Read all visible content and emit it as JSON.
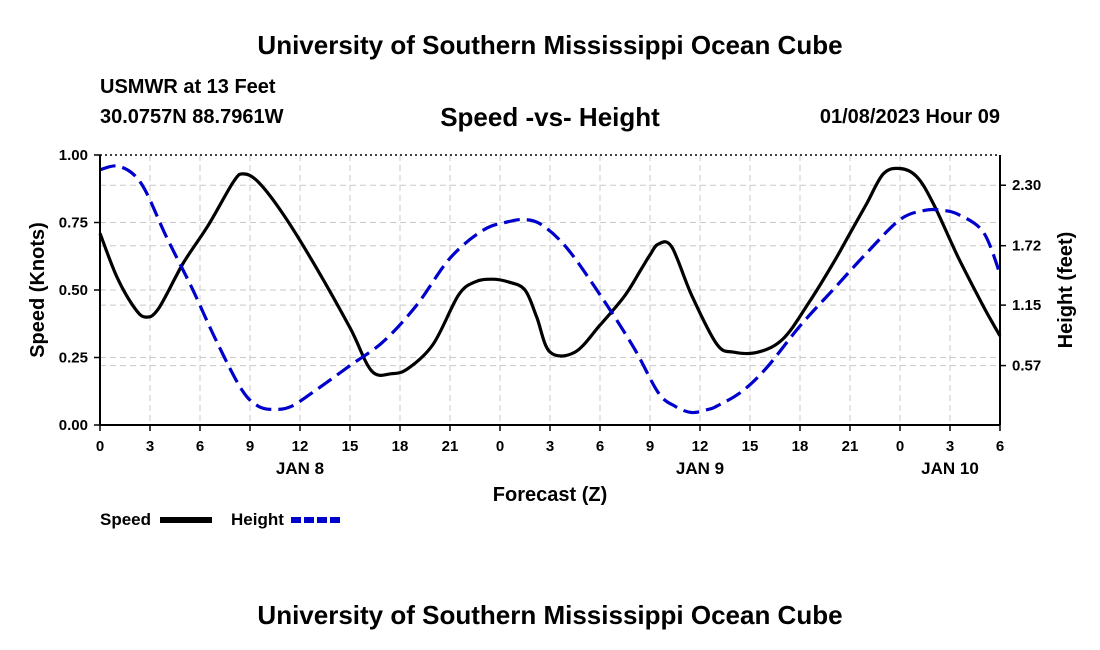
{
  "header": {
    "title_top": "University of Southern Mississippi Ocean Cube",
    "title_bottom": "University of Southern Mississippi Ocean Cube",
    "station": "USMWR at 13 Feet",
    "coords": "30.0757N  88.7961W",
    "chart_title": "Speed -vs- Height",
    "timestamp": "01/08/2023 Hour 09"
  },
  "chart_data": {
    "type": "line",
    "title": "Speed -vs- Height",
    "xlabel": "Forecast (Z)",
    "ylabel": "Speed (Knots)",
    "y2label": "Height (feet)",
    "xlim": [
      0,
      54
    ],
    "ylim": [
      0,
      1
    ],
    "y2lim": [
      0,
      2.59
    ],
    "x_ticks": [
      0,
      3,
      6,
      9,
      12,
      15,
      18,
      21,
      24,
      27,
      30,
      33,
      36,
      39,
      42,
      45,
      48,
      51,
      54
    ],
    "x_tick_labels": [
      "0",
      "3",
      "6",
      "9",
      "12",
      "15",
      "18",
      "21",
      "0",
      "3",
      "6",
      "9",
      "12",
      "15",
      "18",
      "21",
      "0",
      "3",
      "6"
    ],
    "day_labels": [
      {
        "x": 12,
        "label": "JAN 8"
      },
      {
        "x": 36,
        "label": "JAN 9"
      },
      {
        "x": 51,
        "label": "JAN 10"
      }
    ],
    "y_ticks": [
      0,
      0.25,
      0.5,
      0.75,
      1.0
    ],
    "y_tick_labels": [
      "0.00",
      "0.25",
      "0.50",
      "0.75",
      "1.00"
    ],
    "y2_ticks": [
      0.57,
      1.15,
      1.72,
      2.3
    ],
    "y2_tick_labels": [
      "0.57",
      "1.15",
      "1.72",
      "2.30"
    ],
    "grid": true,
    "legend": [
      {
        "name": "Speed",
        "color": "#000000",
        "style": "solid"
      },
      {
        "name": "Height",
        "color": "#0000cc",
        "style": "dashed"
      }
    ],
    "series": [
      {
        "name": "Speed",
        "axis": "left",
        "color": "#000000",
        "dash": "",
        "x": [
          0,
          1,
          2,
          2.7,
          3.5,
          5,
          6.5,
          8,
          8.6,
          9.5,
          11,
          13,
          15,
          16.3,
          17.5,
          18.5,
          20,
          21.5,
          22.5,
          23.5,
          24.5,
          25.5,
          26.2,
          27,
          28.5,
          30,
          31.5,
          32.5,
          33,
          33.5,
          34.3,
          35.5,
          37,
          38,
          39.5,
          41,
          42.5,
          44,
          45,
          46,
          47,
          48,
          49,
          50,
          51.5,
          53,
          54
        ],
        "y": [
          0.71,
          0.55,
          0.44,
          0.4,
          0.43,
          0.6,
          0.74,
          0.9,
          0.93,
          0.9,
          0.78,
          0.58,
          0.36,
          0.2,
          0.19,
          0.21,
          0.3,
          0.48,
          0.53,
          0.54,
          0.53,
          0.5,
          0.4,
          0.27,
          0.27,
          0.37,
          0.48,
          0.58,
          0.63,
          0.67,
          0.66,
          0.48,
          0.3,
          0.27,
          0.27,
          0.32,
          0.45,
          0.6,
          0.71,
          0.82,
          0.93,
          0.95,
          0.92,
          0.82,
          0.62,
          0.44,
          0.33
        ]
      },
      {
        "name": "Height",
        "axis": "right",
        "color": "#0000cc",
        "dash": "16,7",
        "x": [
          0,
          1.2,
          2.5,
          4,
          5.5,
          7,
          8.5,
          9.5,
          10.5,
          11.5,
          13,
          15,
          17,
          19,
          21,
          23,
          24.5,
          25.5,
          26.5,
          28,
          30,
          32,
          33.5,
          34.5,
          35.5,
          36.5,
          37,
          38.5,
          40,
          42,
          44,
          46,
          48,
          49.5,
          50.5,
          51.5,
          53,
          54
        ],
        "y": [
          2.45,
          2.48,
          2.31,
          1.8,
          1.32,
          0.8,
          0.34,
          0.18,
          0.15,
          0.18,
          0.34,
          0.57,
          0.8,
          1.15,
          1.6,
          1.87,
          1.95,
          1.97,
          1.92,
          1.7,
          1.25,
          0.75,
          0.31,
          0.18,
          0.12,
          0.15,
          0.18,
          0.32,
          0.55,
          0.95,
          1.3,
          1.65,
          1.97,
          2.06,
          2.06,
          2.02,
          1.85,
          1.45
        ]
      }
    ]
  }
}
